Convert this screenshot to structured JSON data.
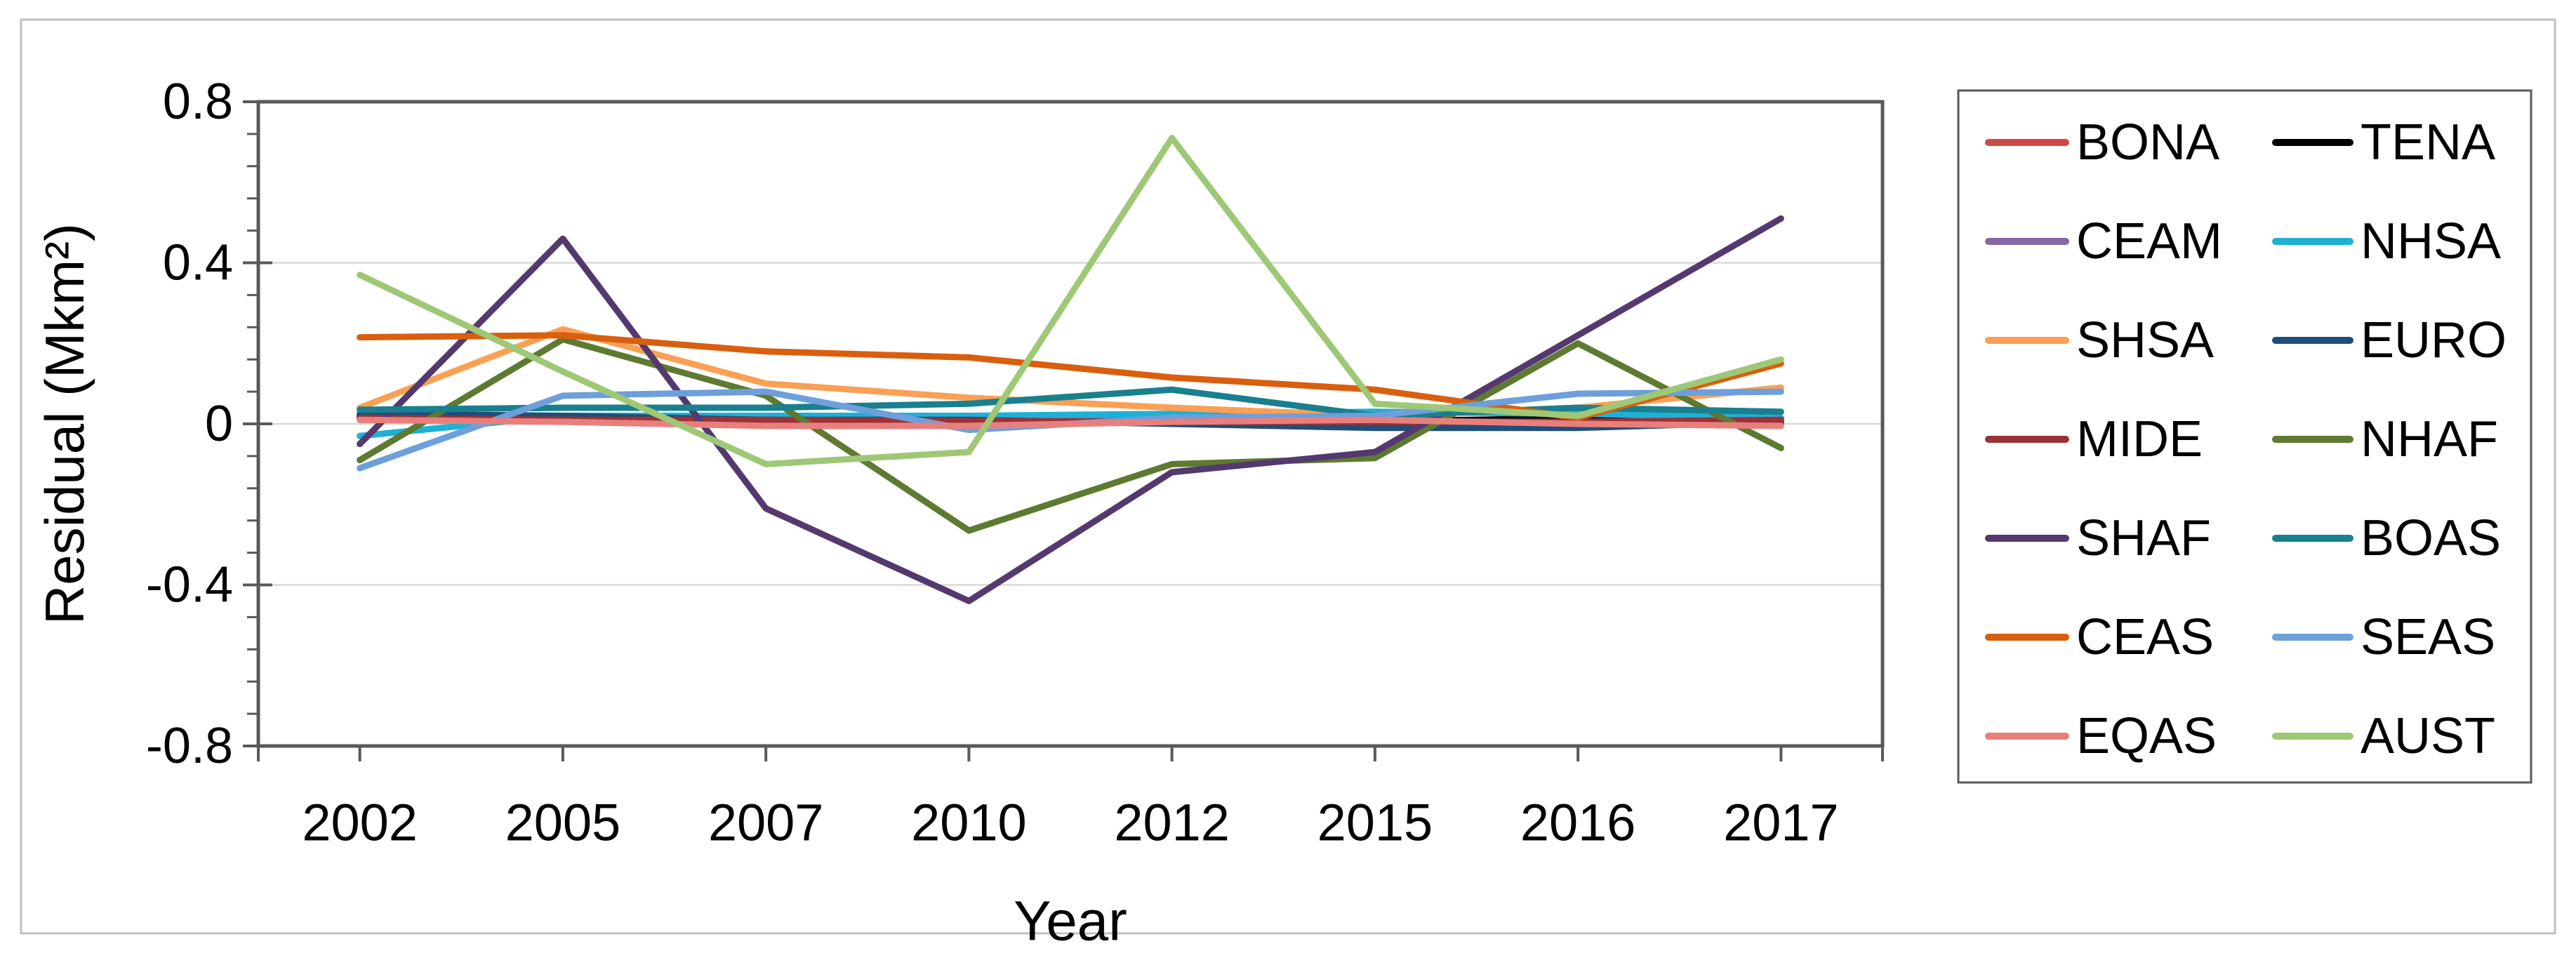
{
  "chart_data": {
    "type": "line",
    "title": "",
    "xlabel": "Year",
    "ylabel": "Residual (Mkm²)",
    "categories": [
      "2002",
      "2005",
      "2007",
      "2010",
      "2012",
      "2015",
      "2016",
      "2017"
    ],
    "ylim": [
      -0.8,
      0.8
    ],
    "y_major_unit": 0.4,
    "y_minor_unit": 0.08,
    "y_tick_labels": [
      "0.8",
      "0.4",
      "0",
      "-0.4",
      "-0.8"
    ],
    "y_tick_values": [
      0.8,
      0.4,
      0,
      -0.4,
      -0.8
    ],
    "y_gridline_values": [
      0.4,
      0,
      -0.4
    ],
    "grid_on": true,
    "legend_position": "right",
    "series": [
      {
        "name": "BONA",
        "color": "#CE4A46",
        "values": [
          0.015,
          0.01,
          0.005,
          0.005,
          0.01,
          0.01,
          0.01,
          0.0
        ]
      },
      {
        "name": "TENA",
        "color": "#000000",
        "values": [
          0.02,
          0.015,
          0.01,
          0.01,
          0.02,
          0.005,
          0.015,
          0.01
        ]
      },
      {
        "name": "CEAM",
        "color": "#8667A8",
        "values": [
          0.01,
          0.02,
          0.015,
          0.005,
          0.01,
          0.005,
          0.005,
          0.01
        ]
      },
      {
        "name": "NHSA",
        "color": "#1FB0D5",
        "values": [
          -0.03,
          0.02,
          0.02,
          0.02,
          0.025,
          0.03,
          0.025,
          0.015
        ]
      },
      {
        "name": "SHSA",
        "color": "#F9A054",
        "values": [
          0.04,
          0.235,
          0.1,
          0.065,
          0.04,
          0.02,
          0.04,
          0.09
        ]
      },
      {
        "name": "EURO",
        "color": "#1F4E79",
        "values": [
          0.025,
          0.02,
          0.01,
          0.01,
          0.0,
          -0.01,
          -0.01,
          0.005
        ]
      },
      {
        "name": "MIDE",
        "color": "#9C3236",
        "values": [
          0.015,
          0.01,
          0.01,
          0.007,
          0.005,
          0.005,
          0.005,
          0.01
        ]
      },
      {
        "name": "NHAF",
        "color": "#5E7A31",
        "values": [
          -0.09,
          0.21,
          0.07,
          -0.265,
          -0.1,
          -0.085,
          0.2,
          -0.06
        ]
      },
      {
        "name": "SHAF",
        "color": "#54396E",
        "values": [
          -0.05,
          0.46,
          -0.21,
          -0.44,
          -0.12,
          -0.07,
          0.22,
          0.51
        ]
      },
      {
        "name": "BOAS",
        "color": "#18808E",
        "values": [
          0.035,
          0.04,
          0.04,
          0.05,
          0.085,
          0.02,
          0.04,
          0.03
        ]
      },
      {
        "name": "CEAS",
        "color": "#D95F0E",
        "values": [
          0.215,
          0.22,
          0.18,
          0.165,
          0.115,
          0.085,
          0.015,
          0.15
        ]
      },
      {
        "name": "SEAS",
        "color": "#6D9FDB",
        "values": [
          -0.11,
          0.07,
          0.08,
          -0.015,
          0.015,
          0.02,
          0.075,
          0.08
        ]
      },
      {
        "name": "EQAS",
        "color": "#E97F7C",
        "values": [
          0.01,
          0.005,
          -0.005,
          -0.005,
          0.005,
          0.01,
          0.0,
          -0.005
        ]
      },
      {
        "name": "AUST",
        "color": "#9FC876",
        "values": [
          0.37,
          0.13,
          -0.1,
          -0.07,
          0.71,
          0.05,
          0.02,
          0.16
        ]
      }
    ],
    "legend_columns": [
      [
        "BONA",
        "CEAM",
        "SHSA",
        "MIDE",
        "SHAF",
        "CEAS",
        "EQAS"
      ],
      [
        "TENA",
        "NHSA",
        "EURO",
        "NHAF",
        "BOAS",
        "SEAS",
        "AUST"
      ]
    ]
  },
  "colors": {
    "plot_border": "#595959",
    "gridline": "#D9D9D9",
    "outer_border": "#C0C0C0",
    "legend_border": "#595959",
    "text": "#000000",
    "background": "#FFFFFF"
  }
}
